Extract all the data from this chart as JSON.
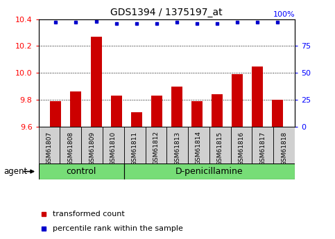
{
  "title": "GDS1394 / 1375197_at",
  "samples": [
    "GSM61807",
    "GSM61808",
    "GSM61809",
    "GSM61810",
    "GSM61811",
    "GSM61812",
    "GSM61813",
    "GSM61814",
    "GSM61815",
    "GSM61816",
    "GSM61817",
    "GSM61818"
  ],
  "transformed_count": [
    9.79,
    9.86,
    10.27,
    9.83,
    9.71,
    9.83,
    9.9,
    9.79,
    9.84,
    9.99,
    10.05,
    9.8
  ],
  "percentile_rank": [
    97,
    97,
    98,
    96,
    96,
    96,
    97,
    96,
    96,
    97,
    97,
    97
  ],
  "ylim_left": [
    9.6,
    10.4
  ],
  "ylim_right": [
    0,
    100
  ],
  "yticks_left": [
    9.6,
    9.8,
    10.0,
    10.2,
    10.4
  ],
  "yticks_right": [
    0,
    25,
    50,
    75,
    100
  ],
  "control_count": 4,
  "dpen_count": 8,
  "bar_color": "#CC0000",
  "dot_color": "#0000CC",
  "bar_width": 0.55,
  "grid_color": "black",
  "tick_bg_color": "#d0d0d0",
  "group_bg_color": "#77dd77",
  "agent_label": "agent",
  "control_label": "control",
  "dpen_label": "D-penicillamine",
  "legend_bar_label": "transformed count",
  "legend_dot_label": "percentile rank within the sample"
}
